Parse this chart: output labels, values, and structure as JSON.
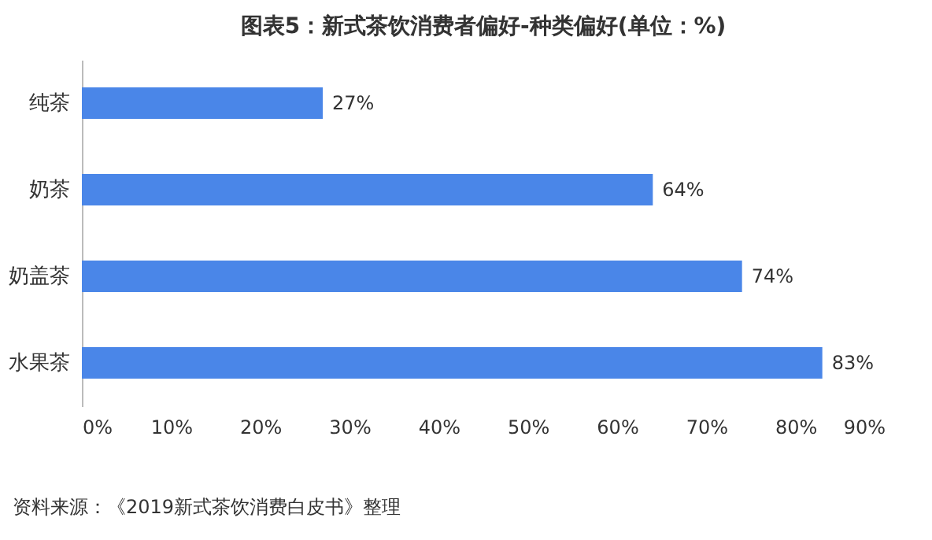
{
  "chart_data": {
    "type": "bar",
    "orientation": "horizontal",
    "title": "图表5：新式茶饮消费者偏好-种类偏好(单位：%)",
    "categories": [
      "纯茶",
      "奶茶",
      "奶盖茶",
      "水果茶"
    ],
    "values": [
      27,
      64,
      74,
      83
    ],
    "value_labels": [
      "27%",
      "64%",
      "74%",
      "83%"
    ],
    "color": "#4a86e8",
    "xlim": [
      0,
      90
    ],
    "xticks": [
      {
        "value": 0,
        "label": "0%"
      },
      {
        "value": 10,
        "label": "10%"
      },
      {
        "value": 20,
        "label": "20%"
      },
      {
        "value": 30,
        "label": "30%"
      },
      {
        "value": 40,
        "label": "40%"
      },
      {
        "value": 50,
        "label": "50%"
      },
      {
        "value": 60,
        "label": "60%"
      },
      {
        "value": 70,
        "label": "70%"
      },
      {
        "value": 80,
        "label": "80%"
      },
      {
        "value": 90,
        "label": "90%"
      }
    ],
    "grid": false,
    "annotations": [
      "资料来源：《2019新式茶饮消费白皮书》整理"
    ]
  }
}
